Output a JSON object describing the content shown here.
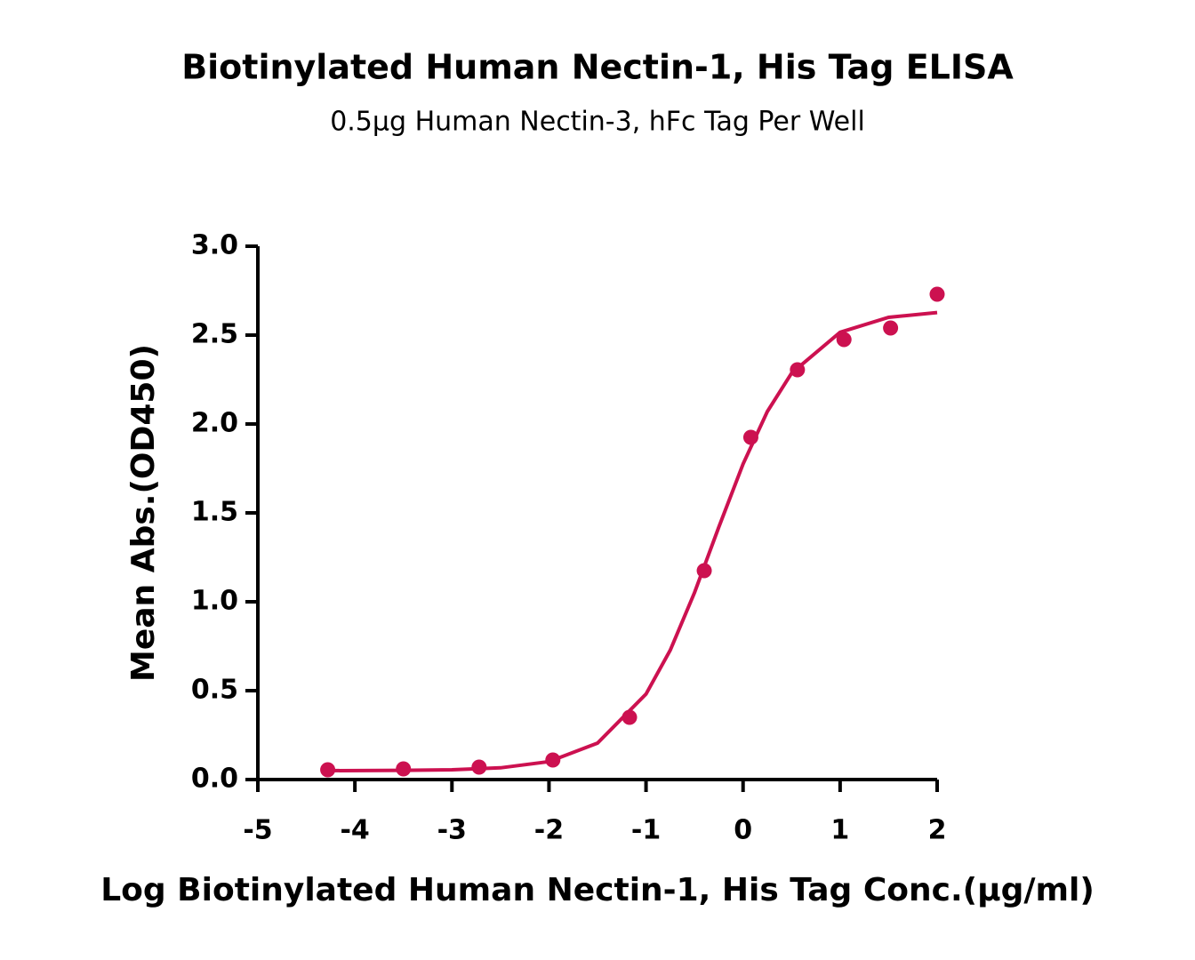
{
  "chart_data": {
    "type": "scatter",
    "title": "Biotinylated Human Nectin-1, His Tag ELISA",
    "subtitle": "0.5μg Human Nectin-3, hFc Tag Per Well",
    "x_label": "Log Biotinylated Human Nectin-1, His Tag Conc.(μg/ml)",
    "y_label": "Mean Abs.(OD450)",
    "xlim": [
      -5,
      2
    ],
    "xticks": [
      -5,
      -4,
      -3,
      -2,
      -1,
      0,
      1,
      2
    ],
    "ylim": [
      0,
      3
    ],
    "yticks": [
      {
        "value": 0,
        "label": "0.0"
      },
      {
        "value": 0.5,
        "label": "0.5"
      },
      {
        "value": 1,
        "label": "1.0"
      },
      {
        "value": 1.5,
        "label": "1.5"
      },
      {
        "value": 2,
        "label": "2.0"
      },
      {
        "value": 2.5,
        "label": "2.5"
      },
      {
        "value": 3,
        "label": "3.0"
      }
    ],
    "series": [
      {
        "style": "markers",
        "color": "#cc1150",
        "x": [
          -4.28,
          -3.5,
          -2.72,
          -1.96,
          -1.17,
          -0.4,
          0.08,
          0.56,
          1.04,
          1.52,
          2.0
        ],
        "values": [
          0.055,
          0.06,
          0.07,
          0.11,
          0.35,
          1.175,
          1.925,
          2.305,
          2.475,
          2.54,
          2.73
        ]
      },
      {
        "style": "line",
        "color": "#cc1150",
        "x": [
          -4.28,
          -3.5,
          -3,
          -2.5,
          -2,
          -1.5,
          -1,
          -0.75,
          -0.5,
          -0.25,
          0,
          0.25,
          0.5,
          1,
          1.5,
          2
        ],
        "values": [
          0.05,
          0.052,
          0.055,
          0.066,
          0.101,
          0.205,
          0.481,
          0.728,
          1.052,
          1.42,
          1.775,
          2.07,
          2.286,
          2.516,
          2.6,
          2.627
        ]
      }
    ]
  }
}
